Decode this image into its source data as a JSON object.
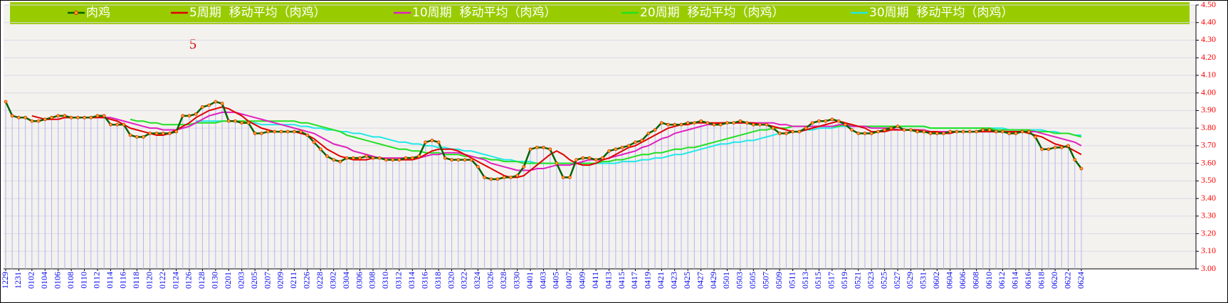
{
  "chart_data": {
    "type": "line",
    "legend": "top",
    "yaxis_side": "right",
    "grid": true,
    "drop_lines": true,
    "annotation": "5",
    "ylim": [
      3.0,
      4.5
    ],
    "yticks": [
      {
        "value": 3.0,
        "label": "3.00"
      },
      {
        "value": 3.1,
        "label": "3.10"
      },
      {
        "value": 3.2,
        "label": "3.20"
      },
      {
        "value": 3.3,
        "label": "3.30"
      },
      {
        "value": 3.4,
        "label": "3.40"
      },
      {
        "value": 3.5,
        "label": "3.50"
      },
      {
        "value": 3.6,
        "label": "3.60"
      },
      {
        "value": 3.7,
        "label": "3.70"
      },
      {
        "value": 3.8,
        "label": "3.80"
      },
      {
        "value": 3.9,
        "label": "3.90"
      },
      {
        "value": 4.0,
        "label": "4.00"
      },
      {
        "value": 4.1,
        "label": "4.10"
      },
      {
        "value": 4.2,
        "label": "4.20"
      },
      {
        "value": 4.3,
        "label": "4.30"
      },
      {
        "value": 4.4,
        "label": "4.40"
      },
      {
        "value": 4.5,
        "label": "4.50"
      }
    ],
    "categories": [
      "1229",
      null,
      "1231",
      null,
      "0102",
      null,
      "0104",
      null,
      "0106",
      null,
      "0108",
      null,
      "0110",
      null,
      "0112",
      null,
      "0114",
      null,
      "0116",
      null,
      "0118",
      null,
      "0120",
      null,
      "0122",
      null,
      "0124",
      null,
      "0126",
      null,
      "0128",
      null,
      "0130",
      null,
      "0201",
      null,
      "0203",
      null,
      "0205",
      null,
      "0207",
      null,
      "0209",
      null,
      "0211",
      null,
      "0226",
      null,
      "0228",
      null,
      "0302",
      null,
      "0304",
      null,
      "0306",
      null,
      "0308",
      null,
      "0310",
      null,
      "0312",
      null,
      "0314",
      null,
      "0316",
      null,
      "0318",
      null,
      "0320",
      null,
      "0322",
      null,
      "0324",
      null,
      "0326",
      null,
      "0328",
      null,
      "0330",
      null,
      "0401",
      null,
      "0403",
      null,
      "0405",
      null,
      "0407",
      null,
      "0409",
      null,
      "0411",
      null,
      "0413",
      null,
      "0415",
      null,
      "0417",
      null,
      "0419",
      null,
      "0421",
      null,
      "0423",
      null,
      "0425",
      null,
      "0427",
      null,
      "0429",
      null,
      "0501",
      null,
      "0503",
      null,
      "0505",
      null,
      "0507",
      null,
      "0509",
      null,
      "0511",
      null,
      "0513",
      null,
      "0515",
      null,
      "0517",
      null,
      "0519",
      null,
      "0521",
      null,
      "0523",
      null,
      "0525",
      null,
      "0527",
      null,
      "0529",
      null,
      "0531",
      null,
      "0602",
      null,
      "0604",
      null,
      "0606",
      null,
      "0608",
      null,
      "0610",
      null,
      "0612",
      null,
      "0614",
      null,
      "0616",
      null,
      "0618",
      null,
      "0620",
      null,
      "0622",
      null,
      "0624"
    ],
    "series": [
      {
        "name": "肉鸡",
        "color": "#006400",
        "marker": true,
        "values": [
          3.95,
          3.87,
          3.86,
          3.86,
          3.84,
          3.84,
          3.85,
          3.86,
          3.87,
          3.87,
          3.86,
          3.86,
          3.86,
          3.86,
          3.87,
          3.87,
          3.82,
          3.82,
          3.82,
          3.76,
          3.75,
          3.75,
          3.77,
          3.77,
          3.77,
          3.77,
          3.78,
          3.87,
          3.87,
          3.88,
          3.92,
          3.93,
          3.95,
          3.94,
          3.84,
          3.84,
          3.83,
          3.83,
          3.77,
          3.77,
          3.78,
          3.78,
          3.78,
          3.78,
          3.78,
          3.78,
          3.76,
          3.72,
          3.68,
          3.64,
          3.62,
          3.61,
          3.63,
          3.63,
          3.63,
          3.64,
          3.63,
          3.63,
          3.62,
          3.62,
          3.62,
          3.63,
          3.63,
          3.64,
          3.72,
          3.73,
          3.72,
          3.63,
          3.62,
          3.62,
          3.62,
          3.62,
          3.58,
          3.52,
          3.51,
          3.51,
          3.52,
          3.52,
          3.53,
          3.58,
          3.68,
          3.69,
          3.69,
          3.68,
          3.6,
          3.52,
          3.52,
          3.62,
          3.63,
          3.63,
          3.62,
          3.63,
          3.67,
          3.68,
          3.69,
          3.7,
          3.72,
          3.73,
          3.77,
          3.79,
          3.83,
          3.82,
          3.82,
          3.82,
          3.83,
          3.83,
          3.84,
          3.83,
          3.82,
          3.82,
          3.83,
          3.83,
          3.84,
          3.83,
          3.82,
          3.82,
          3.82,
          3.8,
          3.77,
          3.77,
          3.78,
          3.78,
          3.8,
          3.83,
          3.84,
          3.84,
          3.85,
          3.84,
          3.82,
          3.79,
          3.77,
          3.77,
          3.77,
          3.78,
          3.79,
          3.8,
          3.81,
          3.79,
          3.79,
          3.78,
          3.78,
          3.77,
          3.77,
          3.77,
          3.78,
          3.78,
          3.78,
          3.78,
          3.78,
          3.79,
          3.79,
          3.78,
          3.78,
          3.77,
          3.77,
          3.78,
          3.78,
          3.75,
          3.68,
          3.68,
          3.69,
          3.69,
          3.7,
          3.62,
          3.57
        ]
      },
      {
        "name": "5周期  移动平均（肉鸡）",
        "color": "#e00000",
        "values": [
          null,
          null,
          null,
          null,
          3.87,
          3.86,
          3.85,
          3.85,
          3.85,
          3.86,
          3.86,
          3.86,
          3.86,
          3.86,
          3.86,
          3.86,
          3.85,
          3.84,
          3.82,
          3.8,
          3.79,
          3.78,
          3.77,
          3.76,
          3.76,
          3.77,
          3.79,
          3.81,
          3.83,
          3.86,
          3.88,
          3.9,
          3.91,
          3.92,
          3.91,
          3.89,
          3.87,
          3.84,
          3.82,
          3.8,
          3.79,
          3.78,
          3.78,
          3.78,
          3.78,
          3.77,
          3.76,
          3.74,
          3.71,
          3.68,
          3.66,
          3.64,
          3.63,
          3.62,
          3.62,
          3.62,
          3.63,
          3.63,
          3.62,
          3.62,
          3.62,
          3.62,
          3.62,
          3.63,
          3.65,
          3.67,
          3.68,
          3.68,
          3.68,
          3.67,
          3.65,
          3.63,
          3.61,
          3.59,
          3.57,
          3.55,
          3.53,
          3.52,
          3.52,
          3.53,
          3.56,
          3.59,
          3.62,
          3.65,
          3.67,
          3.65,
          3.62,
          3.6,
          3.59,
          3.59,
          3.6,
          3.62,
          3.63,
          3.65,
          3.67,
          3.69,
          3.7,
          3.72,
          3.74,
          3.76,
          3.78,
          3.8,
          3.81,
          3.82,
          3.82,
          3.83,
          3.83,
          3.83,
          3.83,
          3.83,
          3.83,
          3.83,
          3.83,
          3.83,
          3.83,
          3.82,
          3.82,
          3.81,
          3.8,
          3.79,
          3.78,
          3.78,
          3.79,
          3.8,
          3.81,
          3.82,
          3.83,
          3.84,
          3.83,
          3.82,
          3.81,
          3.8,
          3.78,
          3.78,
          3.78,
          3.79,
          3.79,
          3.79,
          3.79,
          3.79,
          3.78,
          3.78,
          3.78,
          3.77,
          3.77,
          3.78,
          3.78,
          3.78,
          3.78,
          3.78,
          3.78,
          3.78,
          3.78,
          3.78,
          3.78,
          3.78,
          3.77,
          3.76,
          3.75,
          3.73,
          3.71,
          3.7,
          3.69,
          3.67,
          3.65
        ]
      },
      {
        "name": "10周期  移动平均（肉鸡）",
        "color": "#e020c0",
        "values": [
          null,
          null,
          null,
          null,
          null,
          null,
          null,
          null,
          null,
          3.86,
          3.86,
          3.86,
          3.86,
          3.86,
          3.86,
          3.86,
          3.86,
          3.85,
          3.84,
          3.83,
          3.82,
          3.81,
          3.8,
          3.8,
          3.79,
          3.79,
          3.79,
          3.8,
          3.81,
          3.83,
          3.85,
          3.87,
          3.88,
          3.89,
          3.89,
          3.89,
          3.88,
          3.87,
          3.86,
          3.85,
          3.84,
          3.83,
          3.82,
          3.81,
          3.8,
          3.79,
          3.78,
          3.77,
          3.75,
          3.73,
          3.71,
          3.7,
          3.69,
          3.67,
          3.66,
          3.65,
          3.64,
          3.63,
          3.63,
          3.63,
          3.63,
          3.63,
          3.63,
          3.63,
          3.64,
          3.65,
          3.65,
          3.66,
          3.66,
          3.66,
          3.65,
          3.64,
          3.63,
          3.62,
          3.6,
          3.59,
          3.58,
          3.57,
          3.56,
          3.56,
          3.56,
          3.57,
          3.57,
          3.58,
          3.59,
          3.59,
          3.59,
          3.6,
          3.61,
          3.62,
          3.62,
          3.62,
          3.63,
          3.64,
          3.65,
          3.66,
          3.67,
          3.69,
          3.7,
          3.72,
          3.74,
          3.75,
          3.77,
          3.78,
          3.79,
          3.8,
          3.81,
          3.82,
          3.82,
          3.83,
          3.83,
          3.83,
          3.83,
          3.83,
          3.83,
          3.83,
          3.83,
          3.83,
          3.82,
          3.82,
          3.81,
          3.81,
          3.81,
          3.81,
          3.81,
          3.81,
          3.81,
          3.82,
          3.82,
          3.81,
          3.81,
          3.81,
          3.8,
          3.8,
          3.8,
          3.8,
          3.79,
          3.79,
          3.79,
          3.79,
          3.79,
          3.78,
          3.78,
          3.78,
          3.78,
          3.78,
          3.78,
          3.78,
          3.78,
          3.78,
          3.78,
          3.78,
          3.78,
          3.78,
          3.78,
          3.78,
          3.78,
          3.78,
          3.77,
          3.76,
          3.75,
          3.74,
          3.73,
          3.72,
          3.7
        ]
      },
      {
        "name": "20周期  移动平均（肉鸡）",
        "color": "#22e022",
        "values": [
          null,
          null,
          null,
          null,
          null,
          null,
          null,
          null,
          null,
          null,
          null,
          null,
          null,
          null,
          null,
          null,
          null,
          null,
          null,
          3.85,
          3.84,
          3.84,
          3.83,
          3.83,
          3.82,
          3.82,
          3.82,
          3.82,
          3.82,
          3.83,
          3.83,
          3.83,
          3.83,
          3.84,
          3.84,
          3.84,
          3.84,
          3.84,
          3.84,
          3.84,
          3.84,
          3.84,
          3.84,
          3.84,
          3.84,
          3.83,
          3.83,
          3.82,
          3.81,
          3.8,
          3.79,
          3.78,
          3.76,
          3.75,
          3.74,
          3.73,
          3.72,
          3.71,
          3.7,
          3.69,
          3.68,
          3.68,
          3.67,
          3.67,
          3.66,
          3.66,
          3.66,
          3.65,
          3.65,
          3.65,
          3.64,
          3.64,
          3.63,
          3.63,
          3.62,
          3.62,
          3.61,
          3.61,
          3.61,
          3.6,
          3.6,
          3.6,
          3.6,
          3.6,
          3.6,
          3.6,
          3.6,
          3.6,
          3.6,
          3.6,
          3.6,
          3.61,
          3.61,
          3.62,
          3.62,
          3.63,
          3.64,
          3.65,
          3.65,
          3.66,
          3.66,
          3.67,
          3.68,
          3.68,
          3.69,
          3.69,
          3.7,
          3.71,
          3.72,
          3.73,
          3.74,
          3.75,
          3.76,
          3.77,
          3.78,
          3.79,
          3.79,
          3.8,
          3.8,
          3.8,
          3.81,
          3.81,
          3.81,
          3.81,
          3.81,
          3.81,
          3.81,
          3.81,
          3.82,
          3.82,
          3.81,
          3.81,
          3.81,
          3.81,
          3.81,
          3.81,
          3.81,
          3.81,
          3.81,
          3.81,
          3.81,
          3.8,
          3.8,
          3.8,
          3.8,
          3.8,
          3.8,
          3.8,
          3.8,
          3.8,
          3.8,
          3.79,
          3.79,
          3.79,
          3.79,
          3.79,
          3.79,
          3.78,
          3.78,
          3.78,
          3.77,
          3.77,
          3.77,
          3.76,
          3.75
        ]
      },
      {
        "name": "30周期  移动平均（肉鸡）",
        "color": "#22e8e8",
        "values": [
          null,
          null,
          null,
          null,
          null,
          null,
          null,
          null,
          null,
          null,
          null,
          null,
          null,
          null,
          null,
          null,
          null,
          null,
          null,
          null,
          null,
          null,
          null,
          null,
          null,
          null,
          null,
          null,
          null,
          3.84,
          3.84,
          3.84,
          3.84,
          3.84,
          3.84,
          3.84,
          3.83,
          3.83,
          3.83,
          3.82,
          3.82,
          3.82,
          3.82,
          3.82,
          3.82,
          3.81,
          3.81,
          3.8,
          3.8,
          3.79,
          3.79,
          3.78,
          3.78,
          3.77,
          3.77,
          3.76,
          3.75,
          3.75,
          3.74,
          3.73,
          3.72,
          3.72,
          3.71,
          3.71,
          3.7,
          3.7,
          3.69,
          3.69,
          3.68,
          3.68,
          3.67,
          3.67,
          3.66,
          3.65,
          3.64,
          3.63,
          3.62,
          3.62,
          3.61,
          3.61,
          3.61,
          3.6,
          3.6,
          3.6,
          3.6,
          3.6,
          3.6,
          3.6,
          3.6,
          3.6,
          3.6,
          3.6,
          3.6,
          3.6,
          3.61,
          3.61,
          3.61,
          3.62,
          3.62,
          3.63,
          3.63,
          3.64,
          3.65,
          3.65,
          3.66,
          3.67,
          3.68,
          3.69,
          3.7,
          3.71,
          3.71,
          3.72,
          3.72,
          3.73,
          3.73,
          3.74,
          3.75,
          3.76,
          3.77,
          3.77,
          3.78,
          3.78,
          3.79,
          3.79,
          3.8,
          3.8,
          3.8,
          3.81,
          3.81,
          3.81,
          3.81,
          3.81,
          3.81,
          3.81,
          3.81,
          3.81,
          3.81,
          3.81,
          3.81,
          3.81,
          3.81,
          3.8,
          3.8,
          3.8,
          3.8,
          3.8,
          3.8,
          3.8,
          3.8,
          3.8,
          3.8,
          3.8,
          3.8,
          3.79,
          3.79,
          3.79,
          3.79,
          3.79,
          3.79,
          3.78,
          3.78,
          3.77,
          3.77,
          3.76,
          3.76
        ]
      }
    ]
  }
}
